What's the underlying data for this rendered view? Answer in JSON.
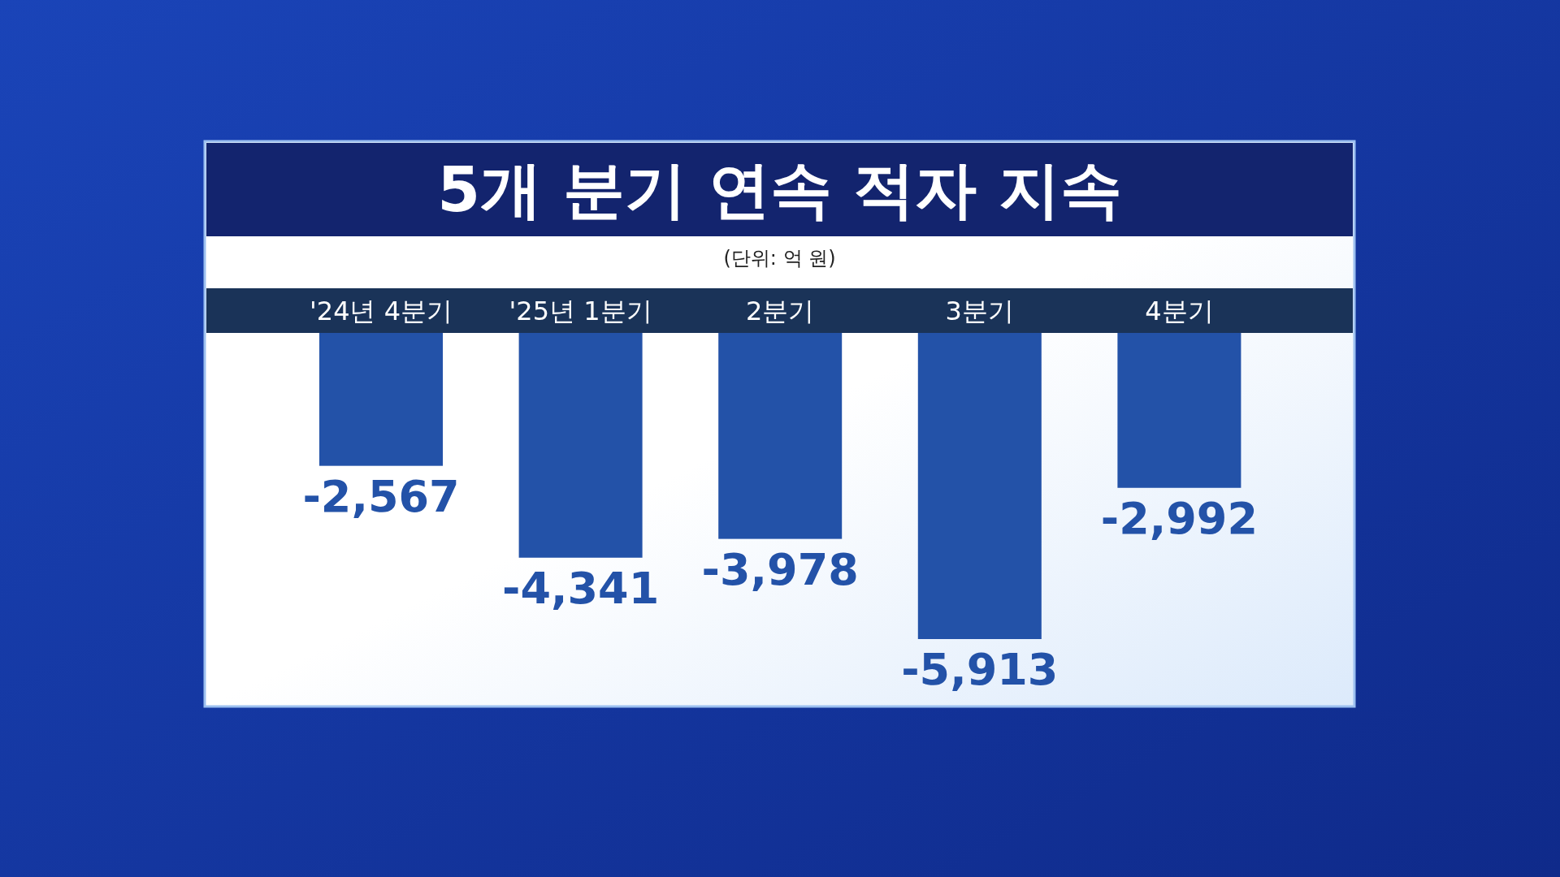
{
  "chart_data": {
    "type": "bar",
    "title": "5개 분기 연속 적자 지속",
    "subtitle": "(단위: 억 원)",
    "categories": [
      "'24년 4분기",
      "'25년 1분기",
      "2분기",
      "3분기",
      "4분기"
    ],
    "values": [
      -2567,
      -4341,
      -3978,
      -5913,
      -2992
    ],
    "value_labels": [
      "-2,567",
      "-4,341",
      "-3,978",
      "-5,913",
      "-2,992"
    ],
    "color": "#2352a8"
  }
}
